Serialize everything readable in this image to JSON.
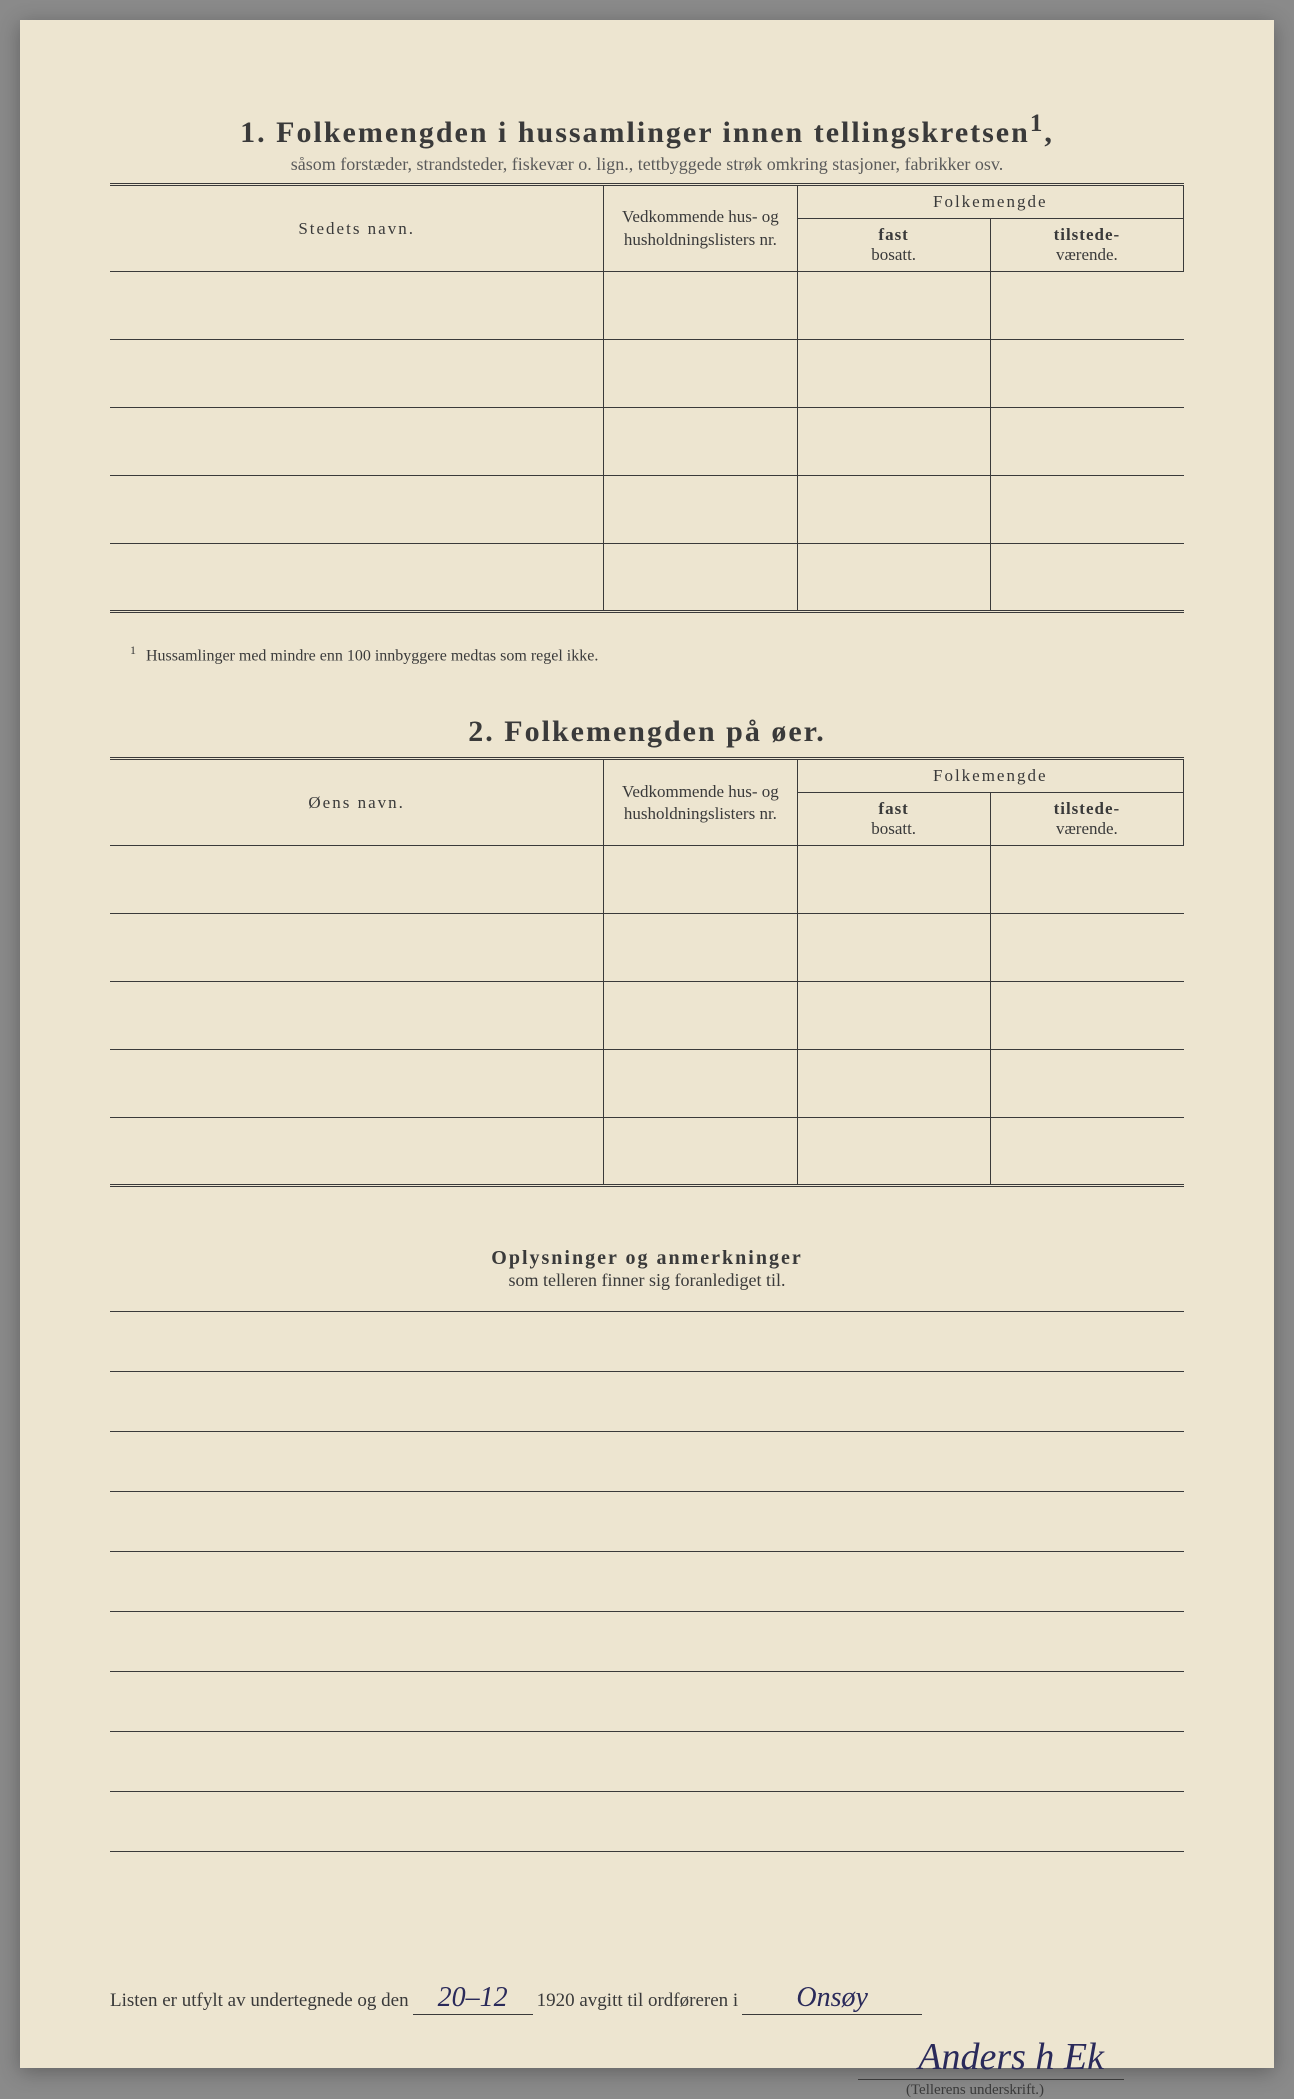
{
  "section1": {
    "number": "1.",
    "title": "Folkemengden i hussamlinger innen tellingskretsen",
    "title_superscript": "1",
    "subtitle": "såsom forstæder, strandsteder, fiskevær o. lign., tettbyggede strøk omkring stasjoner, fabrikker osv.",
    "columns": {
      "name": "Stedets navn.",
      "nr": "Vedkommende hus- og husholdningslisters nr.",
      "folkemengde": "Folkemengde",
      "fast_label": "fast",
      "fast_sub": "bosatt.",
      "til_label": "tilstede-",
      "til_sub": "værende."
    },
    "rows": [
      {
        "name": "",
        "nr": "",
        "fast": "",
        "til": ""
      },
      {
        "name": "",
        "nr": "",
        "fast": "",
        "til": ""
      },
      {
        "name": "",
        "nr": "",
        "fast": "",
        "til": ""
      },
      {
        "name": "",
        "nr": "",
        "fast": "",
        "til": ""
      },
      {
        "name": "",
        "nr": "",
        "fast": "",
        "til": ""
      }
    ],
    "footnote_marker": "1",
    "footnote": "Hussamlinger med mindre enn 100 innbyggere medtas som regel ikke."
  },
  "section2": {
    "number": "2.",
    "title": "Folkemengden på øer.",
    "columns": {
      "name": "Øens navn.",
      "nr": "Vedkommende hus- og husholdningslisters nr.",
      "folkemengde": "Folkemengde",
      "fast_label": "fast",
      "fast_sub": "bosatt.",
      "til_label": "tilstede-",
      "til_sub": "værende."
    },
    "rows": [
      {
        "name": "",
        "nr": "",
        "fast": "",
        "til": ""
      },
      {
        "name": "",
        "nr": "",
        "fast": "",
        "til": ""
      },
      {
        "name": "",
        "nr": "",
        "fast": "",
        "til": ""
      },
      {
        "name": "",
        "nr": "",
        "fast": "",
        "til": ""
      },
      {
        "name": "",
        "nr": "",
        "fast": "",
        "til": ""
      }
    ]
  },
  "remarks": {
    "title": "Oplysninger og anmerkninger",
    "subtitle": "som telleren finner sig foranlediget til.",
    "line_count": 9
  },
  "signature": {
    "prefix": "Listen er utfylt av undertegnede og den",
    "date": "20–12",
    "year": "1920",
    "middle": "avgitt til ordføreren i",
    "place": "Onsøy",
    "name": "Anders h Ek",
    "caption": "(Tellerens underskrift.)"
  },
  "styling": {
    "paper_bg": "#ede5d0",
    "text_color": "#3a3a3a",
    "handwriting_color": "#2a2a5a",
    "border_color": "#3a3a3a"
  }
}
